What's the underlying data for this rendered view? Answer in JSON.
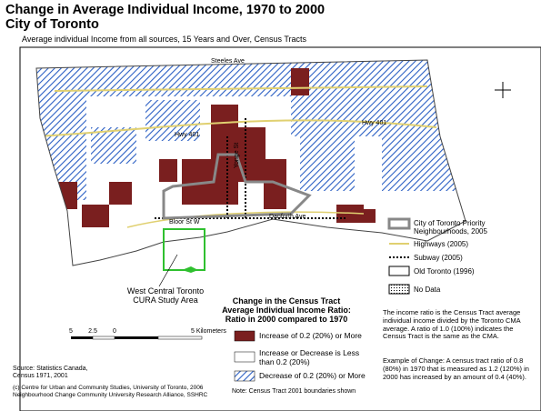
{
  "header": {
    "title": "Change in Average Individual Income, 1970 to 2000",
    "title_line2": "City of Toronto",
    "subtitle": "Average individual Income from all sources, 15 Years and Over, Census Tracts"
  },
  "map": {
    "labels": [
      "Steeles Ave",
      "Hwy 401",
      "Hwy 401",
      "Bloor St W",
      "Danforth Ave",
      "Yonge St"
    ],
    "study_area": "West Central Toronto CURA Study Area",
    "scale": [
      "5",
      "2.5",
      "0",
      "5 Kilometers"
    ]
  },
  "legend": {
    "items": [
      "City of Toronto Priority Neighbourhoods, 2005",
      "Highways (2005)",
      "Subway (2005)",
      "Old Toronto (1996)",
      "No Data"
    ]
  },
  "change_legend": {
    "title": "Change in the Census Tract Average Individual Income Ratio: Ratio in 2000 compared to 1970",
    "items": [
      "Increase of 0.2 (20%) or More",
      "Increase or Decrease is Less than 0.2 (20%)",
      "Decrease of 0.2 (20%) or More"
    ],
    "note": "Note: Census Tract 2001 boundaries shown"
  },
  "footer": {
    "source": "Source: Statistics Canada, Census 1971, 2001",
    "copyright": "(c) Centre for Urban and Community Studies, University of Toronto, 2006 Neighbourhood Change Community University Research Alliance, SSHRC"
  },
  "explanation": {
    "ratio": "The income ratio is the Census Tract average individual income divided by the Toronto CMA average. A ratio of 1.0 (100%) indicates the Census Tract is the same as the CMA.",
    "example": "Example of Change: A census tract ratio of 0.8 (80%) in 1970 that is measured as 1.2 (120%) in 2000 has increased by an amount of 0.4 (40%)."
  }
}
